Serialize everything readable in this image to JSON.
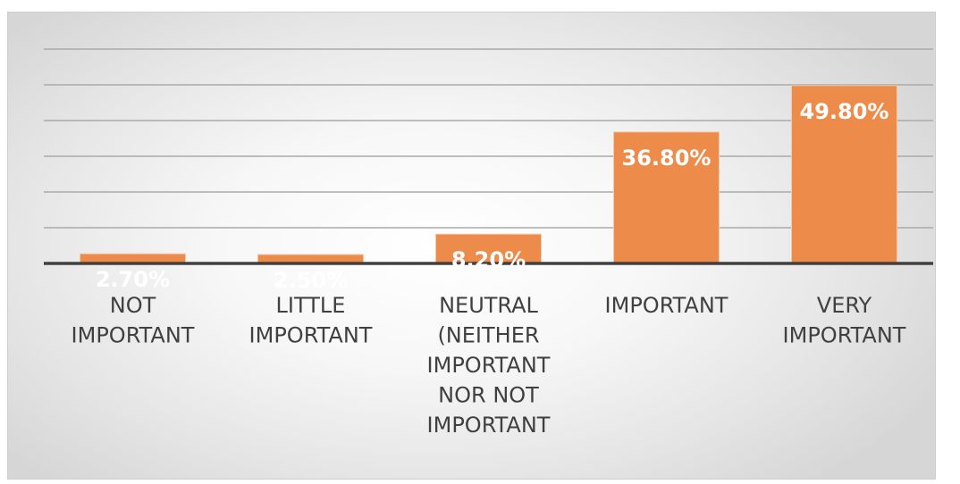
{
  "chart_data": {
    "type": "bar",
    "title": "",
    "xlabel": "",
    "ylabel": "",
    "categories": [
      [
        "NOT",
        "IMPORTANT"
      ],
      [
        "LITTLE",
        "IMPORTANT"
      ],
      [
        "NEUTRAL",
        "(NEITHER",
        "IMPORTANT",
        "NOR NOT",
        "IMPORTANT"
      ],
      [
        "IMPORTANT"
      ],
      [
        "VERY",
        "IMPORTANT"
      ]
    ],
    "values": [
      2.7,
      2.5,
      8.2,
      36.8,
      49.8
    ],
    "labels": [
      "2.70%",
      "2.50%",
      "8.20%",
      "36.80%",
      "49.80%"
    ],
    "ylim": [
      0,
      60
    ],
    "grid": true,
    "y_axis_visible": false,
    "legend": "none",
    "bar_color": "#ED8B4A",
    "grid_color": "#aaaaaa",
    "axis_color": "#404040"
  }
}
